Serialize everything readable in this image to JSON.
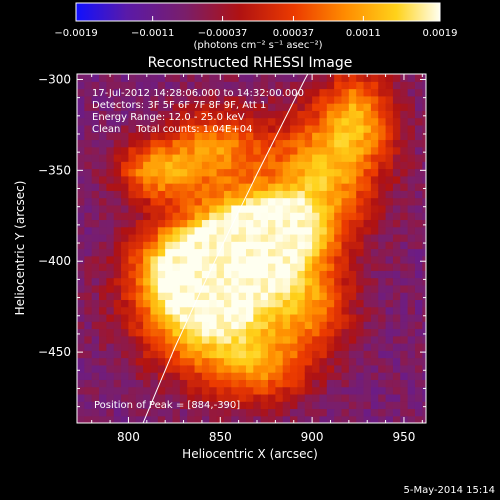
{
  "chart_data": {
    "type": "heatmap",
    "title": "Reconstructed RHESSI Image",
    "xlabel": "Heliocentric X (arcsec)",
    "ylabel": "Heliocentric Y (arcsec)",
    "xlim": [
      772,
      962
    ],
    "ylim": [
      -489,
      -297
    ],
    "x_ticks": [
      800,
      850,
      900,
      950
    ],
    "y_ticks": [
      -300,
      -350,
      -400,
      -450
    ],
    "colorbar": {
      "min": -0.0019,
      "max": 0.0019,
      "tick_values": [
        -0.0019,
        -0.0011,
        -0.00037,
        0.00037,
        0.0011,
        0.0019
      ],
      "tick_labels": [
        "-0.0019",
        "-0.0011",
        "-0.00037",
        "0.00037",
        "0.0011",
        "0.0019"
      ],
      "units_label": "(photons cm⁻² s⁻¹ asec⁻²)"
    },
    "annotations": [
      "17-Jul-2012 14:28:06.000 to 14:32:00.000",
      "Detectors: 3F 5F 6F 7F 8F 9F, Att 1",
      "Energy Range: 12.0 - 25.0 keV",
      "Clean     Total counts: 1.04E+04"
    ],
    "peak_label": "Position of Peak = [884,-390]",
    "peak": {
      "x": 884,
      "y": -390,
      "value": 0.0019
    },
    "limb_curve": {
      "x": [
        808,
        815,
        825,
        840,
        855,
        870,
        885,
        896,
        902
      ],
      "y": [
        -489,
        -472,
        -448,
        -415,
        -383,
        -352,
        -322,
        -300,
        -289
      ]
    },
    "intensity_sources": [
      {
        "x": 876,
        "y": -382,
        "peak": 0.0019,
        "sx": 22,
        "sy": 14
      },
      {
        "x": 843,
        "y": -430,
        "peak": 0.0014,
        "sx": 26,
        "sy": 22
      },
      {
        "x": 832,
        "y": -403,
        "peak": 0.0012,
        "sx": 20,
        "sy": 16
      },
      {
        "x": 862,
        "y": -400,
        "peak": 0.0013,
        "sx": 26,
        "sy": 20
      },
      {
        "x": 905,
        "y": -350,
        "peak": 0.001,
        "sx": 22,
        "sy": 22
      },
      {
        "x": 925,
        "y": -318,
        "peak": 0.0007,
        "sx": 14,
        "sy": 18
      },
      {
        "x": 815,
        "y": -350,
        "peak": 0.0008,
        "sx": 16,
        "sy": 12
      },
      {
        "x": 848,
        "y": -338,
        "peak": 0.0007,
        "sx": 18,
        "sy": 16
      },
      {
        "x": 900,
        "y": -425,
        "peak": 0.0004,
        "sx": 16,
        "sy": 18
      },
      {
        "x": 872,
        "y": -459,
        "peak": 0.0004,
        "sx": 20,
        "sy": 14
      }
    ],
    "background_level": -0.00085,
    "colors": {
      "colormap": [
        "#1010ff",
        "#5a1aa8",
        "#7a1e6a",
        "#b01212",
        "#ec3b00",
        "#ff8c00",
        "#ffd21a",
        "#fffff0"
      ]
    }
  },
  "footer_date": "5-May-2014 15:14"
}
